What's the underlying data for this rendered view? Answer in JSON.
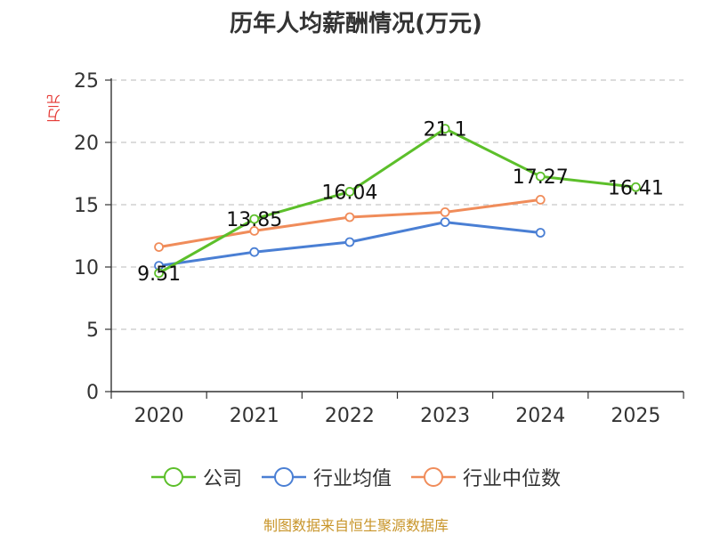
{
  "chart_data": {
    "type": "line",
    "title": "历年人均薪酬情况(万元)",
    "ylabel": "万元",
    "xlabel": "",
    "categories": [
      "2020",
      "2021",
      "2022",
      "2023",
      "2024",
      "2025"
    ],
    "ylim": [
      0,
      25
    ],
    "yticks": [
      "0",
      "5",
      "10",
      "15",
      "20",
      "25"
    ],
    "grid": true,
    "legend_position": "bottom",
    "series": [
      {
        "name": "公司",
        "color": "#5cbf2a",
        "values": [
          9.51,
          13.85,
          16.04,
          21.1,
          17.27,
          16.41
        ],
        "labels": [
          "9.51",
          "13.85",
          "16.04",
          "21.1",
          "17.27",
          "16.41"
        ]
      },
      {
        "name": "行业均值",
        "color": "#4a7fd4",
        "values": [
          10.1,
          11.2,
          12.0,
          13.6,
          12.75,
          null
        ]
      },
      {
        "name": "行业中位数",
        "color": "#f08c5a",
        "values": [
          11.6,
          12.9,
          14.0,
          14.4,
          15.4,
          null
        ]
      }
    ]
  },
  "footer": {
    "source": "制图数据来自恒生聚源数据库"
  }
}
